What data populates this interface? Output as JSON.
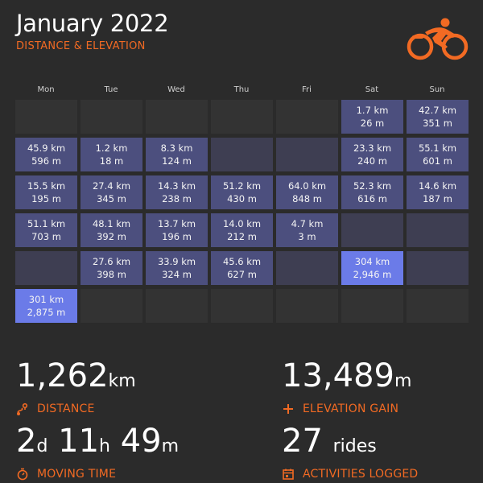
{
  "header": {
    "title": "January 2022",
    "subtitle": "DISTANCE & ELEVATION",
    "logo_icon": "cyclist-icon",
    "accent_color": "#f26a23"
  },
  "weekdays": [
    "Mon",
    "Tue",
    "Wed",
    "Thu",
    "Fri",
    "Sat",
    "Sun"
  ],
  "calendar": [
    [
      {
        "dist": "",
        "elev": "",
        "level": "empty"
      },
      {
        "dist": "",
        "elev": "",
        "level": "empty"
      },
      {
        "dist": "",
        "elev": "",
        "level": "empty"
      },
      {
        "dist": "",
        "elev": "",
        "level": "empty"
      },
      {
        "dist": "",
        "elev": "",
        "level": "empty"
      },
      {
        "dist": "1.7 km",
        "elev": "26 m",
        "level": "low"
      },
      {
        "dist": "42.7 km",
        "elev": "351 m",
        "level": "low"
      }
    ],
    [
      {
        "dist": "45.9 km",
        "elev": "596 m",
        "level": "low"
      },
      {
        "dist": "1.2 km",
        "elev": "18 m",
        "level": "low"
      },
      {
        "dist": "8.3 km",
        "elev": "124 m",
        "level": "low"
      },
      {
        "dist": "",
        "elev": "",
        "level": "blank"
      },
      {
        "dist": "",
        "elev": "",
        "level": "blank"
      },
      {
        "dist": "23.3 km",
        "elev": "240 m",
        "level": "low"
      },
      {
        "dist": "55.1 km",
        "elev": "601 m",
        "level": "low"
      }
    ],
    [
      {
        "dist": "15.5 km",
        "elev": "195 m",
        "level": "low"
      },
      {
        "dist": "27.4 km",
        "elev": "345 m",
        "level": "low"
      },
      {
        "dist": "14.3 km",
        "elev": "238 m",
        "level": "low"
      },
      {
        "dist": "51.2 km",
        "elev": "430 m",
        "level": "low"
      },
      {
        "dist": "64.0 km",
        "elev": "848 m",
        "level": "low"
      },
      {
        "dist": "52.3 km",
        "elev": "616 m",
        "level": "low"
      },
      {
        "dist": "14.6 km",
        "elev": "187 m",
        "level": "low"
      }
    ],
    [
      {
        "dist": "51.1 km",
        "elev": "703 m",
        "level": "low"
      },
      {
        "dist": "48.1 km",
        "elev": "392 m",
        "level": "low"
      },
      {
        "dist": "13.7 km",
        "elev": "196 m",
        "level": "low"
      },
      {
        "dist": "14.0 km",
        "elev": "212 m",
        "level": "low"
      },
      {
        "dist": "4.7 km",
        "elev": "3 m",
        "level": "low"
      },
      {
        "dist": "",
        "elev": "",
        "level": "blank"
      },
      {
        "dist": "",
        "elev": "",
        "level": "blank"
      }
    ],
    [
      {
        "dist": "",
        "elev": "",
        "level": "blank"
      },
      {
        "dist": "27.6 km",
        "elev": "398 m",
        "level": "low"
      },
      {
        "dist": "33.9 km",
        "elev": "324 m",
        "level": "low"
      },
      {
        "dist": "45.6 km",
        "elev": "627 m",
        "level": "low"
      },
      {
        "dist": "",
        "elev": "",
        "level": "blank"
      },
      {
        "dist": "304 km",
        "elev": "2,946 m",
        "level": "high"
      },
      {
        "dist": "",
        "elev": "",
        "level": "blank"
      }
    ],
    [
      {
        "dist": "301 km",
        "elev": "2,875 m",
        "level": "high"
      },
      {
        "dist": "",
        "elev": "",
        "level": "empty"
      },
      {
        "dist": "",
        "elev": "",
        "level": "empty"
      },
      {
        "dist": "",
        "elev": "",
        "level": "empty"
      },
      {
        "dist": "",
        "elev": "",
        "level": "empty"
      },
      {
        "dist": "",
        "elev": "",
        "level": "empty"
      },
      {
        "dist": "",
        "elev": "",
        "level": "empty"
      }
    ]
  ],
  "stats": {
    "distance": {
      "value": "1,262",
      "unit": "km",
      "label": "DISTANCE",
      "icon": "route-pin-icon"
    },
    "elevation": {
      "value": "13,489",
      "unit": "m",
      "label": "ELEVATION GAIN",
      "icon": "plus-icon"
    },
    "moving_time": {
      "d": "2",
      "d_unit": "d",
      "h": "11",
      "h_unit": "h",
      "m": "49",
      "m_unit": "m",
      "label": "MOVING TIME",
      "icon": "stopwatch-icon"
    },
    "activities": {
      "value": "27",
      "unit": "rides",
      "label": "ACTIVITIES LOGGED",
      "icon": "calendar-icon"
    }
  }
}
